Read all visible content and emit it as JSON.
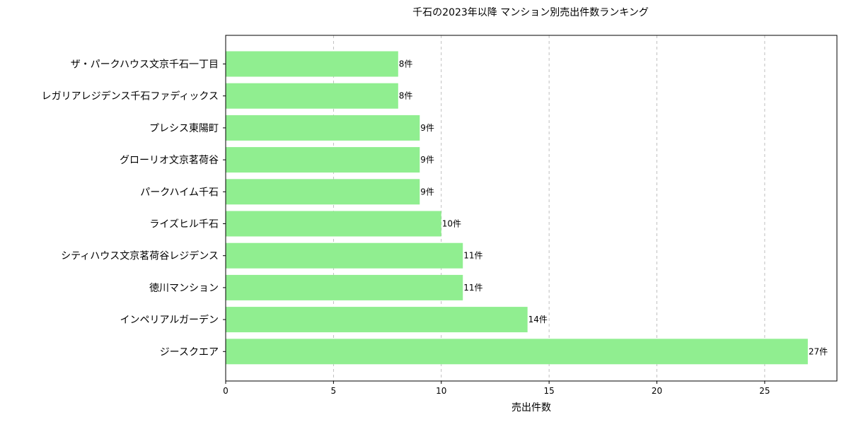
{
  "chart_data": {
    "type": "bar",
    "orientation": "horizontal",
    "title": "千石の2023年以降 マンション別売出件数ランキング",
    "xlabel": "売出件数",
    "ylabel": "",
    "categories": [
      "ザ・パークハウス文京千石一丁目",
      "レガリアレジデンス千石ファディックス",
      "プレシス東陽町",
      "グローリオ文京茗荷谷",
      "パークハイム千石",
      "ライズヒル千石",
      "シティハウス文京茗荷谷レジデンス",
      "徳川マンション",
      "インペリアルガーデン",
      "ジースクエア"
    ],
    "values": [
      8,
      8,
      9,
      9,
      9,
      10,
      11,
      11,
      14,
      27
    ],
    "data_labels": [
      "8件",
      "8件",
      "9件",
      "9件",
      "9件",
      "10件",
      "11件",
      "11件",
      "14件",
      "27件"
    ],
    "xlim": [
      0,
      28.35
    ],
    "xticks": [
      0,
      5,
      10,
      15,
      20,
      25
    ],
    "grid": "x-dashed",
    "legend": "none",
    "bar_color": "#90ee90"
  }
}
